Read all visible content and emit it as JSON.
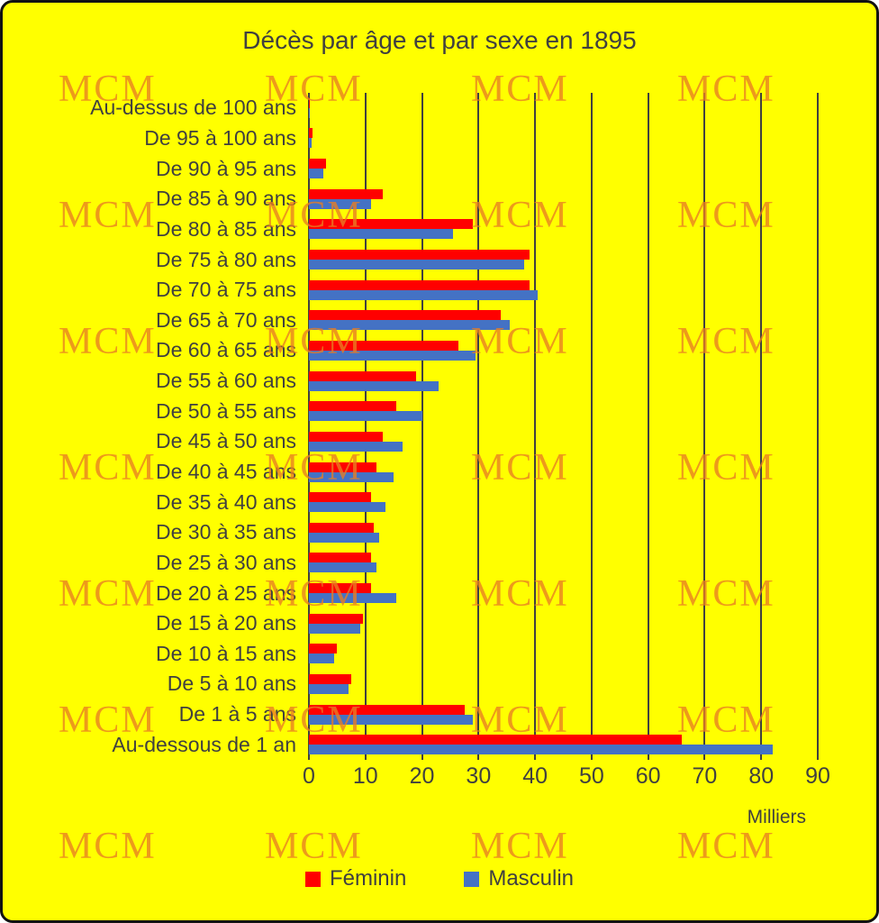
{
  "title": "Décès par âge et par sexe en 1895",
  "watermark": {
    "text": "MCM"
  },
  "axis": {
    "unit_label": "Milliers",
    "ticks": [
      0,
      10,
      20,
      30,
      40,
      50,
      60,
      70,
      80,
      90
    ]
  },
  "chart_data": {
    "type": "bar",
    "orientation": "horizontal",
    "title": "Décès par âge et par sexe en 1895",
    "xlabel": "Milliers",
    "xlim": [
      0,
      90
    ],
    "grid": true,
    "legend_position": "bottom",
    "categories": [
      "Au-dessus de 100 ans",
      "De 95 à 100 ans",
      "De 90 à 95 ans",
      "De 85 à 90 ans",
      "De 80 à 85 ans",
      "De 75 à 80 ans",
      "De 70 à 75 ans",
      "De 65 à 70 ans",
      "De 60 à 65 ans",
      "De 55 à 60 ans",
      "De 50 à 55 ans",
      "De 45 à 50 ans",
      "De 40 à 45 ans",
      "De 35 à 40 ans",
      "De 30 à 35 ans",
      "De 25 à 30 ans",
      "De 20 à 25 ans",
      "De 15 à 20 ans",
      "De 10 à 15 ans",
      "De 5 à 10 ans",
      "De 1 à 5 ans",
      "Au-dessous de 1 an"
    ],
    "series": [
      {
        "name": "Féminin",
        "color": "#FF0000",
        "values": [
          0.2,
          0.6,
          3,
          13,
          29,
          39,
          39,
          34,
          26.5,
          19,
          15.5,
          13,
          12,
          11,
          11.5,
          11,
          11,
          9.5,
          5,
          7.5,
          27.5,
          66
        ]
      },
      {
        "name": "Masculin",
        "color": "#4472C4",
        "values": [
          0.1,
          0.4,
          2.5,
          11,
          25.5,
          38,
          40.5,
          35.5,
          29.5,
          23,
          20,
          16.5,
          15,
          13.5,
          12.5,
          12,
          15.5,
          9,
          4.5,
          7,
          29,
          82
        ]
      }
    ]
  }
}
